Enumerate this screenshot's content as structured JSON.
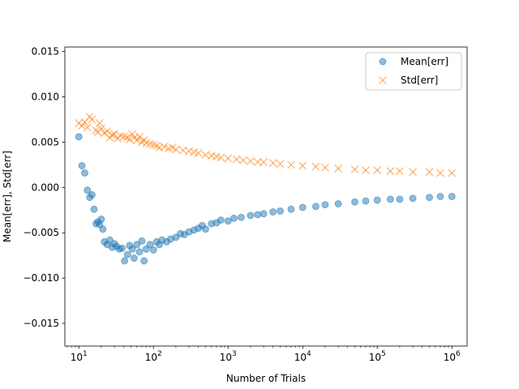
{
  "chart_data": {
    "type": "scatter",
    "xlabel": "Number of Trials",
    "ylabel": "Mean[err], Std[err]",
    "xscale": "log",
    "xlim": [
      6.5,
      1600000
    ],
    "ylim": [
      -0.0175,
      0.0155
    ],
    "x_ticks": [
      {
        "value": 10,
        "base": "10",
        "exp": "1"
      },
      {
        "value": 100,
        "base": "10",
        "exp": "2"
      },
      {
        "value": 1000,
        "base": "10",
        "exp": "3"
      },
      {
        "value": 10000,
        "base": "10",
        "exp": "4"
      },
      {
        "value": 100000,
        "base": "10",
        "exp": "5"
      },
      {
        "value": 1000000,
        "base": "10",
        "exp": "6"
      }
    ],
    "y_ticks": [
      {
        "value": -0.015,
        "label": "−0.015"
      },
      {
        "value": -0.01,
        "label": "−0.010"
      },
      {
        "value": -0.005,
        "label": "−0.005"
      },
      {
        "value": 0.0,
        "label": "0.000"
      },
      {
        "value": 0.005,
        "label": "0.005"
      },
      {
        "value": 0.01,
        "label": "0.010"
      },
      {
        "value": 0.015,
        "label": "0.015"
      }
    ],
    "grid": false,
    "legend": "top-right",
    "series": [
      {
        "name": "Mean[err]",
        "marker": "circle",
        "color": "#1f77b4",
        "points": [
          [
            10,
            0.0056
          ],
          [
            11,
            0.0024
          ],
          [
            12,
            0.0016
          ],
          [
            13,
            -0.0003
          ],
          [
            14,
            -0.0011
          ],
          [
            15,
            -0.0008
          ],
          [
            16,
            -0.0024
          ],
          [
            17,
            -0.004
          ],
          [
            18,
            -0.0038
          ],
          [
            19,
            -0.0041
          ],
          [
            20,
            -0.0035
          ],
          [
            21,
            -0.0046
          ],
          [
            22,
            -0.006
          ],
          [
            24,
            -0.0063
          ],
          [
            26,
            -0.0058
          ],
          [
            28,
            -0.0066
          ],
          [
            30,
            -0.0062
          ],
          [
            32,
            -0.0065
          ],
          [
            35,
            -0.0068
          ],
          [
            38,
            -0.0067
          ],
          [
            41,
            -0.0081
          ],
          [
            45,
            -0.0074
          ],
          [
            48,
            -0.0064
          ],
          [
            52,
            -0.0068
          ],
          [
            55,
            -0.0078
          ],
          [
            60,
            -0.0063
          ],
          [
            65,
            -0.0071
          ],
          [
            70,
            -0.0059
          ],
          [
            75,
            -0.0081
          ],
          [
            80,
            -0.0068
          ],
          [
            90,
            -0.0063
          ],
          [
            100,
            -0.0069
          ],
          [
            110,
            -0.006
          ],
          [
            120,
            -0.0063
          ],
          [
            130,
            -0.0058
          ],
          [
            150,
            -0.006
          ],
          [
            170,
            -0.0057
          ],
          [
            200,
            -0.0055
          ],
          [
            230,
            -0.0051
          ],
          [
            260,
            -0.0052
          ],
          [
            300,
            -0.0049
          ],
          [
            350,
            -0.0047
          ],
          [
            400,
            -0.0045
          ],
          [
            450,
            -0.0042
          ],
          [
            500,
            -0.0046
          ],
          [
            600,
            -0.004
          ],
          [
            700,
            -0.0039
          ],
          [
            800,
            -0.0036
          ],
          [
            1000,
            -0.0037
          ],
          [
            1200,
            -0.0034
          ],
          [
            1500,
            -0.0033
          ],
          [
            2000,
            -0.0031
          ],
          [
            2500,
            -0.003
          ],
          [
            3000,
            -0.0029
          ],
          [
            4000,
            -0.0027
          ],
          [
            5000,
            -0.0026
          ],
          [
            7000,
            -0.0024
          ],
          [
            10000,
            -0.0022
          ],
          [
            15000,
            -0.0021
          ],
          [
            20000,
            -0.0019
          ],
          [
            30000,
            -0.0018
          ],
          [
            50000,
            -0.0016
          ],
          [
            70000,
            -0.0015
          ],
          [
            100000,
            -0.0014
          ],
          [
            150000,
            -0.0013
          ],
          [
            200000,
            -0.0013
          ],
          [
            300000,
            -0.0012
          ],
          [
            500000,
            -0.0011
          ],
          [
            700000,
            -0.001
          ],
          [
            1000000,
            -0.001
          ]
        ]
      },
      {
        "name": "Std[err]",
        "marker": "x",
        "color": "#ff7f0e",
        "points": [
          [
            10,
            0.0071
          ],
          [
            11,
            0.0068
          ],
          [
            12,
            0.0072
          ],
          [
            13,
            0.0066
          ],
          [
            14,
            0.0078
          ],
          [
            15,
            0.0075
          ],
          [
            17,
            0.0063
          ],
          [
            18,
            0.0061
          ],
          [
            19,
            0.0071
          ],
          [
            20,
            0.0065
          ],
          [
            22,
            0.006
          ],
          [
            24,
            0.0062
          ],
          [
            26,
            0.0055
          ],
          [
            28,
            0.0058
          ],
          [
            30,
            0.0059
          ],
          [
            33,
            0.0054
          ],
          [
            36,
            0.0057
          ],
          [
            40,
            0.0056
          ],
          [
            44,
            0.0055
          ],
          [
            48,
            0.0053
          ],
          [
            52,
            0.0059
          ],
          [
            56,
            0.0055
          ],
          [
            60,
            0.0052
          ],
          [
            65,
            0.0056
          ],
          [
            70,
            0.005
          ],
          [
            75,
            0.0052
          ],
          [
            80,
            0.0049
          ],
          [
            90,
            0.0048
          ],
          [
            100,
            0.0047
          ],
          [
            110,
            0.0046
          ],
          [
            120,
            0.0044
          ],
          [
            140,
            0.0045
          ],
          [
            160,
            0.0043
          ],
          [
            180,
            0.0044
          ],
          [
            200,
            0.0042
          ],
          [
            250,
            0.0041
          ],
          [
            300,
            0.004
          ],
          [
            350,
            0.0039
          ],
          [
            400,
            0.0038
          ],
          [
            500,
            0.0036
          ],
          [
            600,
            0.0035
          ],
          [
            700,
            0.0034
          ],
          [
            800,
            0.0033
          ],
          [
            1000,
            0.0032
          ],
          [
            1300,
            0.0031
          ],
          [
            1600,
            0.003
          ],
          [
            2000,
            0.0029
          ],
          [
            2500,
            0.0028
          ],
          [
            3000,
            0.0028
          ],
          [
            4000,
            0.0027
          ],
          [
            5000,
            0.0026
          ],
          [
            7000,
            0.0025
          ],
          [
            10000,
            0.0024
          ],
          [
            15000,
            0.0023
          ],
          [
            20000,
            0.0022
          ],
          [
            30000,
            0.0021
          ],
          [
            50000,
            0.002
          ],
          [
            70000,
            0.0019
          ],
          [
            100000,
            0.0019
          ],
          [
            150000,
            0.0018
          ],
          [
            200000,
            0.0018
          ],
          [
            300000,
            0.0017
          ],
          [
            500000,
            0.0017
          ],
          [
            700000,
            0.0016
          ],
          [
            1000000,
            0.0016
          ]
        ]
      }
    ]
  }
}
